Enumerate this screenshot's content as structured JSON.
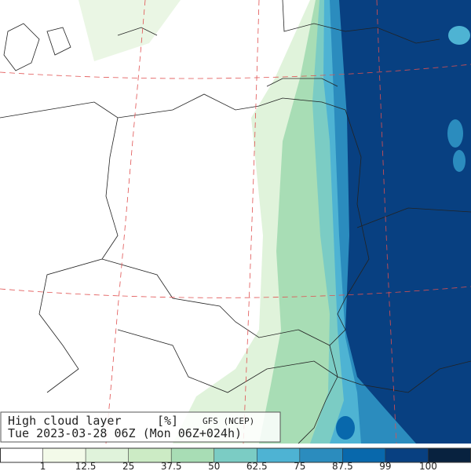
{
  "header": {
    "title": "High cloud layer",
    "unit": "[%]",
    "model": "GFS (NCEP)",
    "valid_time": "Tue 2023-03-28 06Z (Mon 06Z+024h)"
  },
  "colorbar": {
    "levels": [
      1,
      12.5,
      25,
      37.5,
      50,
      62.5,
      75,
      87.5,
      99,
      100
    ],
    "colors": [
      "#ffffff",
      "#f3fae9",
      "#e0f3db",
      "#ccebc5",
      "#a8ddb5",
      "#7bccc4",
      "#4eb3d3",
      "#2b8cbe",
      "#0868ac",
      "#084081",
      "#08223f"
    ]
  }
}
